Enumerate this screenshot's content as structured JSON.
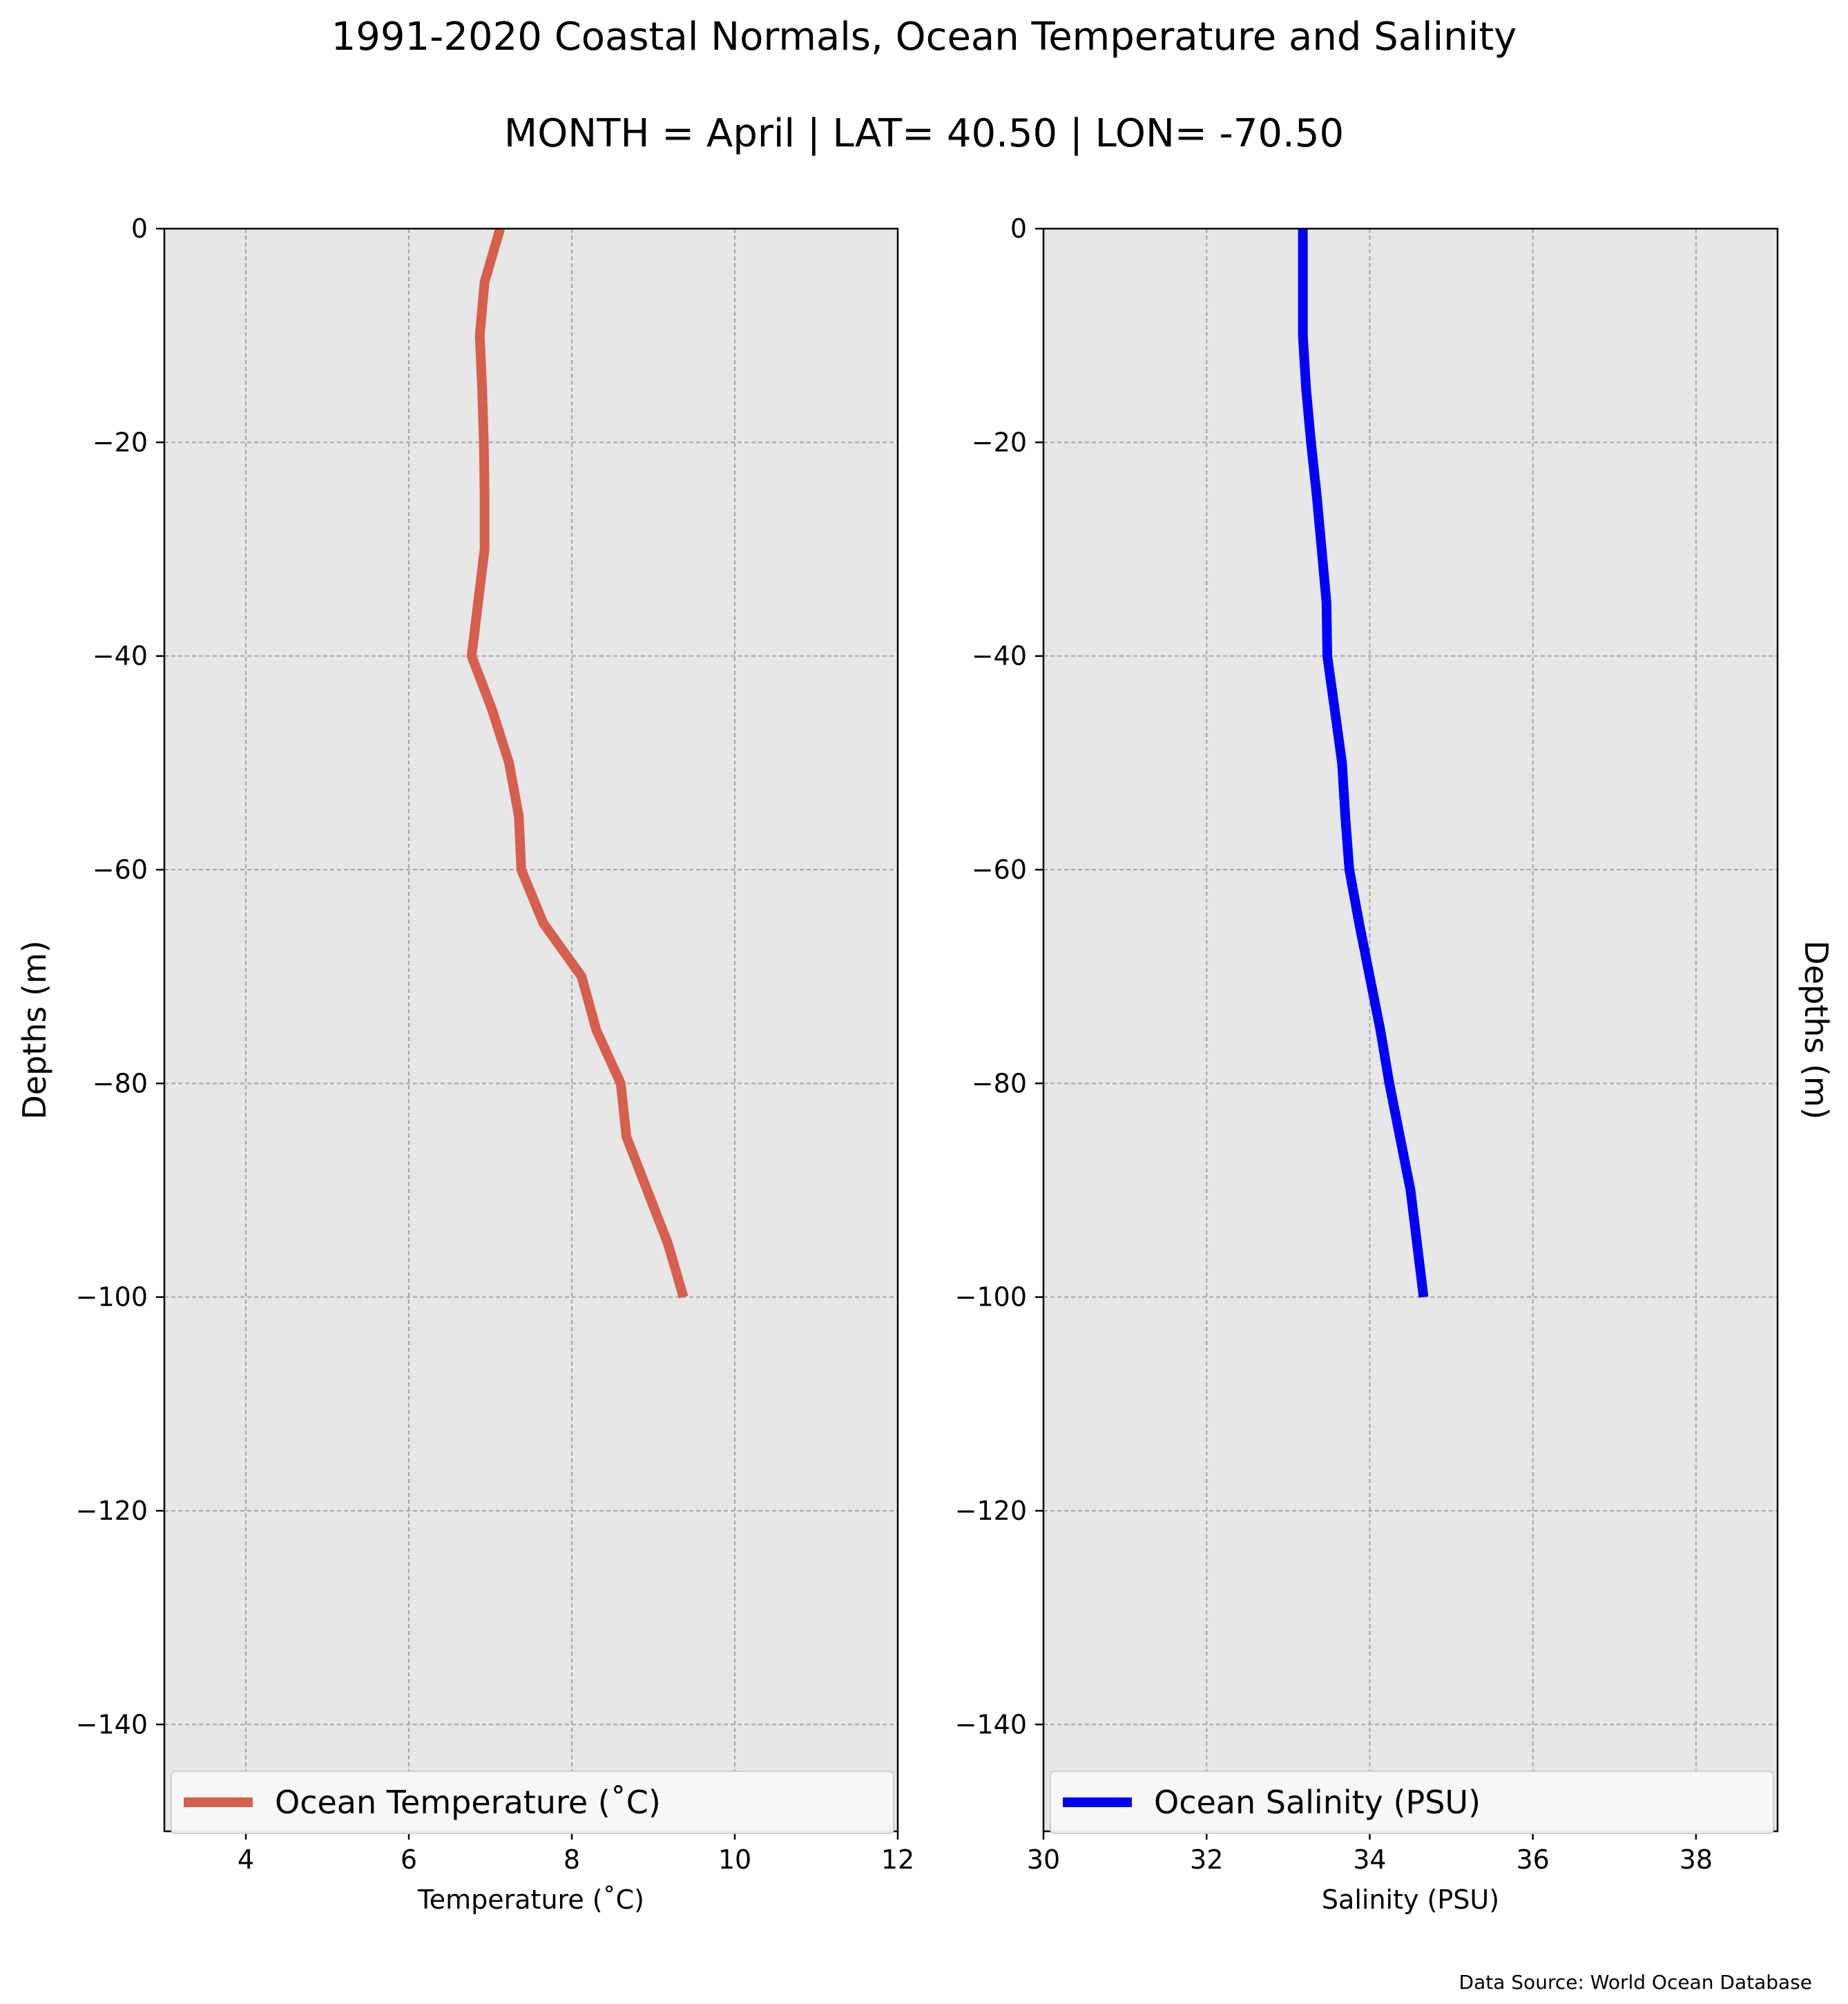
{
  "title": "1991-2020 Coastal Normals, Ocean Temperature and Salinity",
  "subtitle": "MONTH = April | LAT= 40.50 | LON= -70.50",
  "source": "Data Source: World Ocean Database",
  "chart_data": [
    {
      "type": "line",
      "orientation": "vertical-profile",
      "xlabel": "Temperature (˚C)",
      "ylabel": "Depths (m)",
      "ylabel_side": "left",
      "xlim": [
        3,
        12
      ],
      "ylim": [
        -150,
        0
      ],
      "xticks": [
        "4",
        "6",
        "8",
        "10",
        "12"
      ],
      "xtick_values": [
        4,
        6,
        8,
        10,
        12
      ],
      "yticks": [
        "0",
        "−20",
        "−40",
        "−60",
        "−80",
        "−100",
        "−120",
        "−140"
      ],
      "ytick_values": [
        0,
        -20,
        -40,
        -60,
        -80,
        -100,
        -120,
        -140
      ],
      "grid": true,
      "background": "#e7e7e7",
      "legend": "bottom",
      "series": [
        {
          "name": "Ocean Temperature (˚C)",
          "color": "#d65f4d",
          "x": [
            7.12,
            6.93,
            6.87,
            6.9,
            6.92,
            6.93,
            6.93,
            6.85,
            6.77,
            7.02,
            7.23,
            7.35,
            7.38,
            7.65,
            8.12,
            8.3,
            8.6,
            8.67,
            9.18,
            9.37
          ],
          "y": [
            0,
            -5,
            -10,
            -15,
            -20,
            -25,
            -30,
            -35,
            -40,
            -45,
            -50,
            -55,
            -60,
            -65,
            -70,
            -75,
            -80,
            -85,
            -95,
            -100
          ]
        }
      ]
    },
    {
      "type": "line",
      "orientation": "vertical-profile",
      "xlabel": "Salinity (PSU)",
      "ylabel": "Depths (m)",
      "ylabel_side": "right",
      "xlim": [
        30,
        39
      ],
      "ylim": [
        -150,
        0
      ],
      "xticks": [
        "30",
        "32",
        "34",
        "36",
        "38"
      ],
      "xtick_values": [
        30,
        32,
        34,
        36,
        38
      ],
      "yticks": [
        "0",
        "−20",
        "−40",
        "−60",
        "−80",
        "−100",
        "−120",
        "−140"
      ],
      "ytick_values": [
        0,
        -20,
        -40,
        -60,
        -80,
        -100,
        -120,
        -140
      ],
      "grid": true,
      "background": "#e7e7e7",
      "legend": "bottom",
      "series": [
        {
          "name": "Ocean Salinity (PSU)",
          "color": "#0000ff",
          "x": [
            33.18,
            33.18,
            33.18,
            33.22,
            33.28,
            33.35,
            33.41,
            33.47,
            33.48,
            33.57,
            33.66,
            33.7,
            33.75,
            33.87,
            34.0,
            34.13,
            34.24,
            34.5,
            34.66
          ],
          "y": [
            0,
            -5,
            -10,
            -15,
            -20,
            -25,
            -30,
            -35,
            -40,
            -45,
            -50,
            -55,
            -60,
            -65,
            -70,
            -75,
            -80,
            -90,
            -100
          ]
        }
      ]
    }
  ]
}
